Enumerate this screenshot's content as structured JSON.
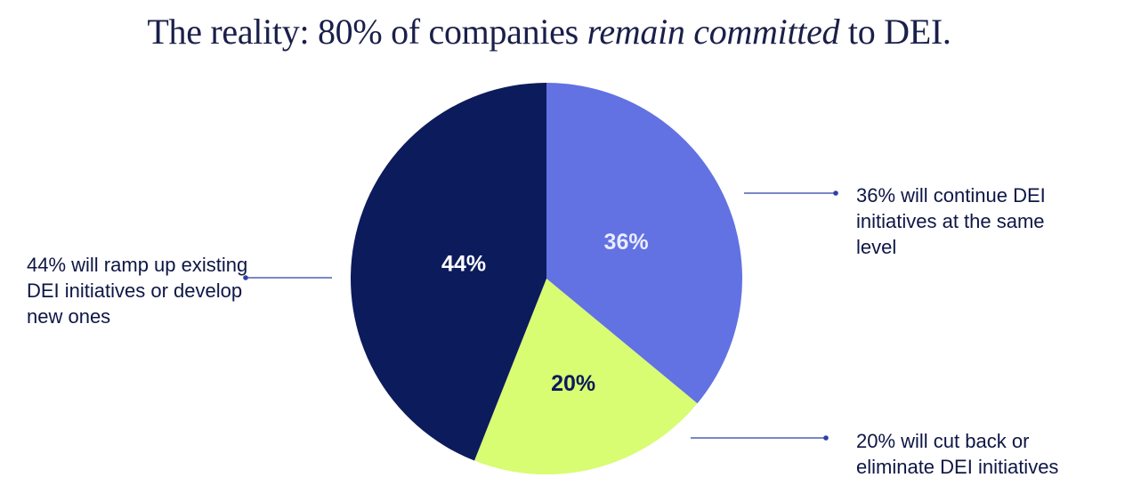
{
  "title": {
    "prefix": "The reality: 80% of companies ",
    "emphasis": "remain committed",
    "suffix": " to DEI."
  },
  "colors": {
    "navy": "#0c1b5c",
    "periwinkle": "#6272e2",
    "lime": "#d8fc72",
    "line": "#2f3fa8"
  },
  "chart_data": {
    "type": "pie",
    "title": "The reality: 80% of companies remain committed to DEI.",
    "slices": [
      {
        "label": "36%",
        "value": 36,
        "color": "#6272e2",
        "text_color": "#e9ecff",
        "callout": "36% will continue DEI initiatives at the same level"
      },
      {
        "label": "20%",
        "value": 20,
        "color": "#d8fc72",
        "text_color": "#0c1b5c",
        "callout": "20% will cut back or eliminate DEI initiatives"
      },
      {
        "label": "44%",
        "value": 44,
        "color": "#0c1b5c",
        "text_color": "#ffffff",
        "callout": "44% will ramp up existing DEI initiatives or develop new ones"
      }
    ]
  }
}
